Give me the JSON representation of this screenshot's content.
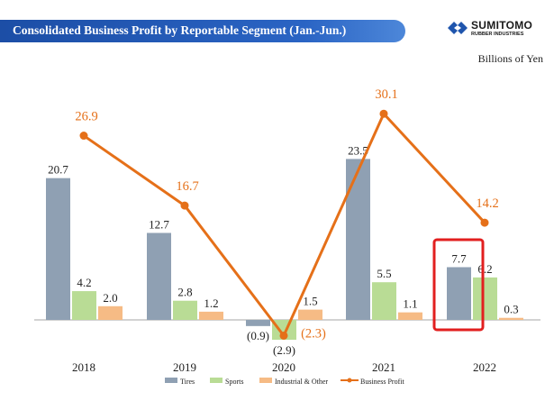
{
  "header": {
    "title": "Consolidated Business Profit by Reportable Segment (Jan.-Jun.)",
    "logo_word": "SUMITOMO",
    "logo_sub": "RUBBER INDUSTRIES"
  },
  "colors": {
    "tires": "#8fa0b3",
    "sports": "#b9dc95",
    "industrial": "#f6bb85",
    "profit": "#e57019",
    "highlight": "#e21f1f",
    "title_bg": "#1f55ad"
  },
  "chart_data": {
    "type": "bar",
    "units": "Billions of Yen",
    "categories": [
      "2018",
      "2019",
      "2020",
      "2021",
      "2022"
    ],
    "series": [
      {
        "name": "Tires",
        "type": "bar",
        "values": [
          20.7,
          12.7,
          -0.9,
          23.5,
          7.7
        ],
        "labels": [
          "20.7",
          "12.7",
          "(0.9)",
          "23.5",
          "7.7"
        ]
      },
      {
        "name": "Sports",
        "type": "bar",
        "values": [
          4.2,
          2.8,
          -2.9,
          5.5,
          6.2
        ],
        "labels": [
          "4.2",
          "2.8",
          "(2.9)",
          "5.5",
          "6.2"
        ]
      },
      {
        "name": "Industrial & Other",
        "type": "bar",
        "values": [
          2.0,
          1.2,
          1.5,
          1.1,
          0.3
        ],
        "labels": [
          "2.0",
          "1.2",
          "1.5",
          "1.1",
          "0.3"
        ]
      },
      {
        "name": "Business Profit",
        "type": "line",
        "values": [
          26.9,
          16.7,
          -2.3,
          30.1,
          14.2
        ],
        "labels": [
          "26.9",
          "16.7",
          "(2.3)",
          "30.1",
          "14.2"
        ]
      }
    ],
    "highlight_category": "2022",
    "legend_position": "bottom",
    "grid": false
  }
}
